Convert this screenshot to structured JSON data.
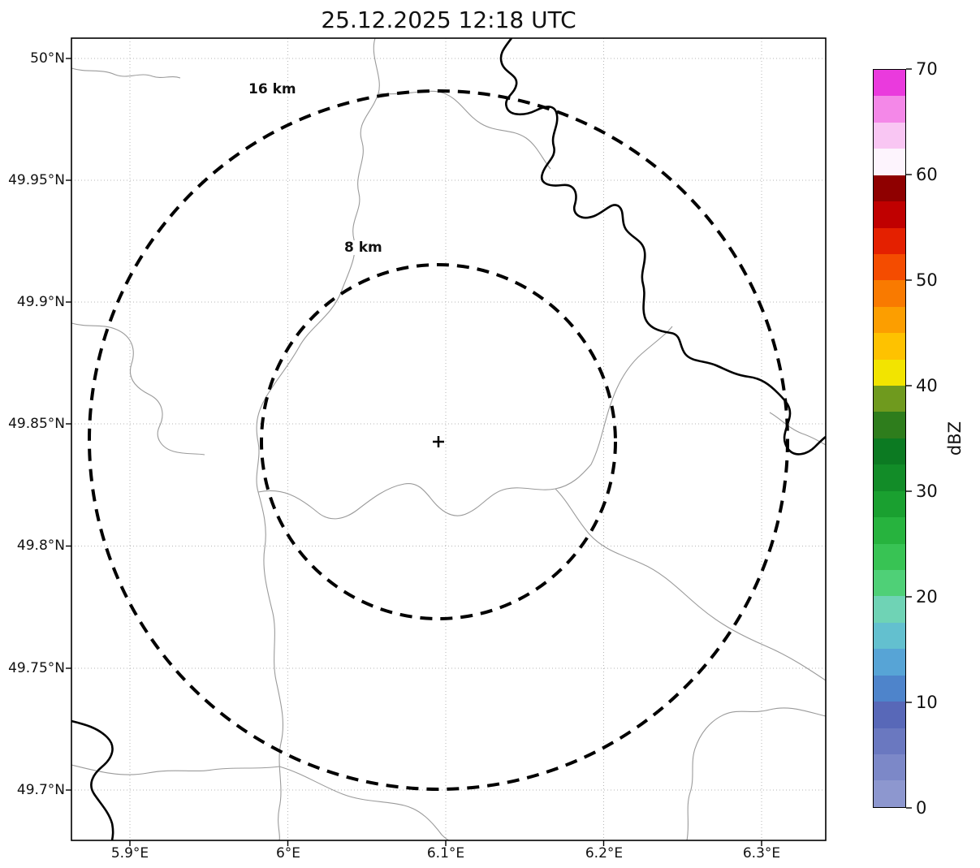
{
  "title": "25.12.2025 12:18 UTC",
  "map": {
    "ring_label_outer": "16 km",
    "ring_label_inner": "8 km",
    "center_marker_glyph": "+"
  },
  "chart_data": {
    "type": "heatmap",
    "title": "25.12.2025 12:18 UTC",
    "description": "Weather radar reflectivity display over a lat/lon map with dashed 8 km and 16 km range rings around the radar site; no reflectivity echoes are visible (empty field).",
    "x_axis": {
      "tick_labels": [
        "5.9°E",
        "6°E",
        "6.1°E",
        "6.2°E",
        "6.3°E"
      ],
      "range_deg_east": [
        5.863,
        6.341
      ]
    },
    "y_axis": {
      "tick_labels": [
        "50°N",
        "49.95°N",
        "49.9°N",
        "49.85°N",
        "49.8°N",
        "49.75°N",
        "49.7°N"
      ],
      "range_deg_north": [
        49.679,
        50.008
      ]
    },
    "grid": true,
    "legend_position": "none",
    "range_rings_km": [
      8,
      16
    ],
    "radar_center": {
      "lon_e": 6.095,
      "lat_n": 49.843
    },
    "values": [],
    "colorbar": {
      "label": "dBZ",
      "min": 0,
      "max": 70,
      "ticks": [
        0,
        10,
        20,
        30,
        40,
        50,
        60,
        70
      ],
      "tick_labels_top_to_bottom": [
        "70",
        "60",
        "50",
        "40",
        "30",
        "20",
        "10",
        "0"
      ],
      "colors_bottom_to_top": [
        "#8d97cf",
        "#7c88c8",
        "#6a78c0",
        "#5868b8",
        "#4e84cb",
        "#57a4d6",
        "#63c0cf",
        "#6fd3b5",
        "#4fd077",
        "#38c354",
        "#27b33e",
        "#1aa030",
        "#128c28",
        "#0c7a22",
        "#2e7d1c",
        "#6f9a1e",
        "#f2e400",
        "#fec200",
        "#fc9e00",
        "#f97a00",
        "#f44c00",
        "#e42000",
        "#c00000",
        "#8f0000",
        "#fdf4fd",
        "#f9c6f3",
        "#f488e8",
        "#ea3add"
      ]
    }
  }
}
